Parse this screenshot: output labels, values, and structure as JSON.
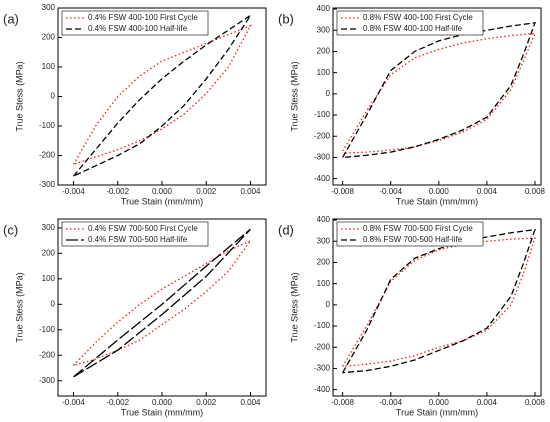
{
  "chart_data": [
    {
      "type": "line",
      "label": "(a)",
      "xlabel": "True Stain (mm/mm)",
      "ylabel": "True Stess (MPa)",
      "xlim": [
        -0.0047,
        0.0047
      ],
      "xticks": [
        -0.004,
        -0.002,
        {
          "value": 0,
          "label": "0.000"
        },
        0.002,
        0.004
      ],
      "ylim": [
        -300,
        300
      ],
      "yticks": [
        -300,
        -200,
        -100,
        0,
        100,
        200,
        300
      ],
      "legend": "upper left",
      "series": [
        {
          "name": "0.4% FSW 400-100 First Cycle",
          "color": "#e8201a",
          "style": "dotted",
          "x": [
            -0.004,
            -0.003,
            -0.002,
            -0.001,
            0,
            0.001,
            0.002,
            0.003,
            0.004,
            0.003,
            0.002,
            0.001,
            0,
            -0.001,
            -0.002,
            -0.003,
            -0.004
          ],
          "values": [
            -230,
            -100,
            0,
            70,
            120,
            150,
            180,
            210,
            240,
            100,
            10,
            -60,
            -110,
            -150,
            -180,
            -205,
            -230
          ]
        },
        {
          "name": "0.4% FSW 400-100 Half-life",
          "color": "#000000",
          "style": "dashed",
          "x": [
            -0.004,
            -0.003,
            -0.002,
            -0.001,
            0,
            0.001,
            0.002,
            0.003,
            0.004,
            0.003,
            0.002,
            0.001,
            0,
            -0.001,
            -0.002,
            -0.003,
            -0.004
          ],
          "values": [
            -270,
            -180,
            -90,
            -10,
            60,
            120,
            175,
            225,
            275,
            160,
            60,
            -30,
            -100,
            -160,
            -200,
            -235,
            -270
          ]
        }
      ]
    },
    {
      "type": "line",
      "label": "(b)",
      "xlabel": "True Stain (mm/mm)",
      "ylabel": "True Stess (MPa)",
      "xlim": [
        -0.0088,
        0.0085
      ],
      "xticks": [
        -0.008,
        -0.004,
        {
          "value": 0,
          "label": "0.000"
        },
        0.004,
        0.008
      ],
      "ylim": [
        -430,
        405
      ],
      "yticks": [
        -400,
        -300,
        -200,
        -100,
        0,
        100,
        200,
        300,
        400
      ],
      "legend": "upper left",
      "series": [
        {
          "name": "0.8% FSW 400-100 First Cycle",
          "color": "#e8201a",
          "style": "dotted",
          "x": [
            -0.008,
            -0.006,
            -0.004,
            -0.002,
            0,
            0.002,
            0.004,
            0.006,
            0.008,
            0.007,
            0.006,
            0.004,
            0.002,
            0,
            -0.002,
            -0.004,
            -0.006,
            -0.008
          ],
          "values": [
            -270,
            -80,
            90,
            170,
            210,
            240,
            260,
            275,
            285,
            150,
            20,
            -120,
            -180,
            -220,
            -250,
            -265,
            -275,
            -280
          ]
        },
        {
          "name": "0.8% FSW 400-100 Half-life",
          "color": "#000000",
          "style": "dashed",
          "x": [
            -0.008,
            -0.006,
            -0.004,
            -0.002,
            0,
            0.002,
            0.004,
            0.006,
            0.008,
            0.007,
            0.006,
            0.004,
            0.002,
            0,
            -0.002,
            -0.004,
            -0.006,
            -0.008
          ],
          "values": [
            -300,
            -100,
            110,
            200,
            250,
            280,
            300,
            320,
            335,
            180,
            40,
            -110,
            -170,
            -215,
            -250,
            -275,
            -290,
            -300
          ]
        }
      ]
    },
    {
      "type": "line",
      "label": "(c)",
      "xlabel": "True Stain (mm/mm)",
      "ylabel": "True Stess (MPa)",
      "xlim": [
        -0.0047,
        0.0047
      ],
      "xticks": [
        -0.004,
        -0.002,
        {
          "value": 0,
          "label": "0.000"
        },
        0.002,
        0.004
      ],
      "ylim": [
        -360,
        335
      ],
      "yticks": [
        -300,
        -200,
        -100,
        0,
        100,
        200,
        300
      ],
      "legend": "upper left",
      "series": [
        {
          "name": "0.4% FSW 700-500 First Cycle",
          "color": "#e8201a",
          "style": "dotted",
          "x": [
            -0.004,
            -0.003,
            -0.002,
            -0.001,
            0,
            0.001,
            0.002,
            0.003,
            0.004,
            0.003,
            0.002,
            0.001,
            0,
            -0.001,
            -0.002,
            -0.003,
            -0.004
          ],
          "values": [
            -240,
            -150,
            -70,
            0,
            60,
            110,
            160,
            210,
            250,
            130,
            50,
            -20,
            -80,
            -140,
            -180,
            -215,
            -240
          ]
        },
        {
          "name": "0.4% FSW 700-500 Half-life",
          "color": "#000000",
          "style": "longdash",
          "x": [
            -0.004,
            -0.002,
            0,
            0.002,
            0.004,
            0.002,
            0,
            -0.002,
            -0.004
          ],
          "values": [
            -285,
            -140,
            0,
            150,
            295,
            110,
            -40,
            -180,
            -285
          ]
        }
      ]
    },
    {
      "type": "line",
      "label": "(d)",
      "xlabel": "True Stain (mm/mm)",
      "ylabel": "True Stess (MPa)",
      "xlim": [
        -0.0088,
        0.0085
      ],
      "xticks": [
        -0.008,
        -0.004,
        {
          "value": 0,
          "label": "0.000"
        },
        0.004,
        0.008
      ],
      "ylim": [
        -430,
        405
      ],
      "yticks": [
        -400,
        -300,
        -200,
        -100,
        0,
        100,
        200,
        300,
        400
      ],
      "legend": "upper left",
      "series": [
        {
          "name": "0.8% FSW 700-500 First Cycle",
          "color": "#e8201a",
          "style": "dotted",
          "x": [
            -0.008,
            -0.006,
            -0.004,
            -0.002,
            0,
            0.002,
            0.004,
            0.006,
            0.008,
            0.007,
            0.006,
            0.004,
            0.002,
            0,
            -0.002,
            -0.004,
            -0.006,
            -0.008
          ],
          "values": [
            -290,
            -100,
            110,
            210,
            260,
            285,
            300,
            310,
            315,
            140,
            0,
            -120,
            -170,
            -200,
            -240,
            -265,
            -280,
            -290
          ]
        },
        {
          "name": "0.8% FSW 700-500 Half-life",
          "color": "#000000",
          "style": "dashed",
          "x": [
            -0.008,
            -0.006,
            -0.004,
            -0.002,
            0,
            0.002,
            0.004,
            0.006,
            0.008,
            0.007,
            0.006,
            0.004,
            0.002,
            0,
            -0.002,
            -0.004,
            -0.006,
            -0.008
          ],
          "values": [
            -320,
            -120,
            120,
            220,
            265,
            300,
            320,
            340,
            355,
            190,
            40,
            -110,
            -170,
            -215,
            -260,
            -290,
            -310,
            -320
          ]
        }
      ]
    }
  ]
}
